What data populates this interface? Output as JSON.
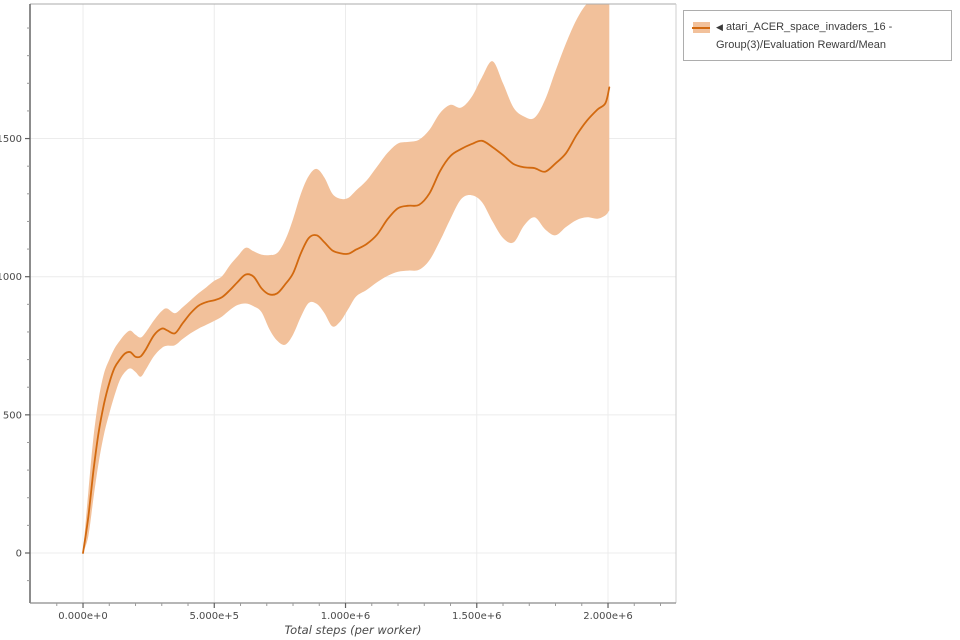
{
  "colors": {
    "line": "#d2690f",
    "band": "#f2c19b",
    "grid": "#ececec",
    "axis_left": "#6f6f6f",
    "axis_bottom": "#8a8a8a",
    "frame_top": "#ababab",
    "frame_right": "#cfcfcf",
    "tick_label": "#4a4a4a"
  },
  "legend": {
    "marker": "◀",
    "label": "atari_ACER_space_invaders_16 - Group(3)/Evaluation Reward/Mean"
  },
  "chart_data": {
    "type": "line",
    "title": "",
    "xlabel": "Total steps (per worker)",
    "ylabel": "",
    "grid": true,
    "legend_position": "top-right-outside",
    "xlim": [
      -202000,
      2259000
    ],
    "ylim": [
      -181,
      1987
    ],
    "x_ticks": {
      "major": [
        0,
        500000,
        1000000,
        1500000,
        2000000
      ],
      "labels": [
        "0.000e+0",
        "5.000e+5",
        "1.000e+6",
        "1.500e+6",
        "2.000e+6"
      ],
      "minor_step": 100000
    },
    "y_ticks": {
      "major": [
        0,
        500,
        1000,
        1500
      ],
      "labels": [
        "0",
        "500",
        "1000",
        "1500"
      ],
      "minor_step": 100
    },
    "series": [
      {
        "name": "atari_ACER_space_invaders_16 - Group(3)/Evaluation Reward/Mean",
        "x": [
          0,
          20000,
          40000,
          60000,
          80000,
          100000,
          120000,
          140000,
          160000,
          180000,
          200000,
          220000,
          240000,
          270000,
          300000,
          320000,
          350000,
          380000,
          410000,
          440000,
          470000,
          500000,
          530000,
          560000,
          590000,
          620000,
          650000,
          680000,
          710000,
          740000,
          770000,
          800000,
          830000,
          860000,
          890000,
          920000,
          950000,
          980000,
          1010000,
          1040000,
          1080000,
          1120000,
          1160000,
          1200000,
          1240000,
          1280000,
          1320000,
          1360000,
          1400000,
          1440000,
          1480000,
          1520000,
          1560000,
          1600000,
          1640000,
          1680000,
          1720000,
          1760000,
          1800000,
          1840000,
          1880000,
          1920000,
          1960000,
          1990000,
          2005000
        ],
        "mean": [
          0,
          130,
          300,
          440,
          540,
          615,
          670,
          700,
          722,
          727,
          710,
          712,
          738,
          788,
          812,
          806,
          795,
          832,
          868,
          895,
          908,
          915,
          926,
          952,
          982,
          1008,
          1000,
          958,
          936,
          940,
          972,
          1012,
          1085,
          1140,
          1150,
          1124,
          1095,
          1085,
          1083,
          1098,
          1118,
          1152,
          1208,
          1248,
          1257,
          1260,
          1302,
          1382,
          1437,
          1462,
          1480,
          1492,
          1469,
          1440,
          1408,
          1396,
          1393,
          1380,
          1410,
          1447,
          1512,
          1565,
          1605,
          1628,
          1685
        ],
        "band_lower": [
          0,
          60,
          200,
          330,
          430,
          505,
          570,
          625,
          655,
          668,
          655,
          638,
          665,
          712,
          742,
          750,
          752,
          775,
          795,
          812,
          826,
          840,
          856,
          880,
          898,
          903,
          893,
          872,
          810,
          768,
          754,
          790,
          855,
          905,
          902,
          868,
          820,
          838,
          882,
          928,
          952,
          980,
          1003,
          1018,
          1022,
          1025,
          1060,
          1130,
          1210,
          1280,
          1295,
          1270,
          1200,
          1140,
          1124,
          1185,
          1215,
          1172,
          1150,
          1180,
          1205,
          1215,
          1210,
          1222,
          1240
        ],
        "band_upper": [
          0,
          220,
          420,
          560,
          650,
          700,
          740,
          768,
          792,
          805,
          790,
          780,
          800,
          842,
          876,
          885,
          868,
          890,
          915,
          940,
          962,
          985,
          1002,
          1042,
          1075,
          1105,
          1092,
          1080,
          1078,
          1086,
          1132,
          1208,
          1300,
          1365,
          1390,
          1358,
          1300,
          1282,
          1285,
          1312,
          1348,
          1398,
          1448,
          1482,
          1488,
          1496,
          1532,
          1592,
          1622,
          1612,
          1650,
          1722,
          1780,
          1700,
          1612,
          1580,
          1575,
          1640,
          1745,
          1845,
          1930,
          1988,
          2005,
          2010,
          2000
        ]
      }
    ]
  }
}
